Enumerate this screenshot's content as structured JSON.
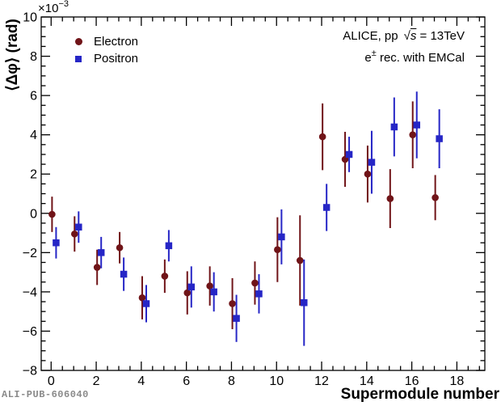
{
  "figure": {
    "id": "ALI-PUB-606040"
  },
  "labels": {
    "y_exp_base": "×10",
    "y_exp_sup": "−3"
  },
  "legend": {
    "items": [
      {
        "label": "Electron",
        "marker": "circle",
        "color": "#701418"
      },
      {
        "label": "Positron",
        "marker": "square",
        "color": "#2626c6"
      }
    ]
  },
  "annotation": {
    "line1_prefix": "ALICE, pp",
    "sqrt_symbol": "√",
    "sqrt_arg": "s",
    "line1_suffix": " = 13TeV",
    "line2_base": "e",
    "line2_sup": "±",
    "line2_rest": " rec. with EMCal"
  },
  "chart_data": {
    "type": "scatter",
    "title": "",
    "xlabel": "Supermodule number",
    "ylabel": "⟨Δφ⟩ (rad)",
    "y_scale_exponent": "×10⁻³",
    "xlim": [
      -0.44,
      19.24
    ],
    "ylim": [
      -8,
      10
    ],
    "xticks": [
      0,
      2,
      4,
      6,
      8,
      10,
      12,
      14,
      16,
      18
    ],
    "yticks": [
      -8,
      -6,
      -4,
      -2,
      0,
      2,
      4,
      6,
      8,
      10
    ],
    "minor_step_x": 0.5,
    "minor_step_y": 0.5,
    "grid": false,
    "legend_position": "top-left",
    "y_units": "10^-3 rad",
    "series": [
      {
        "name": "Electron",
        "marker": "circle",
        "color": "#701418",
        "x_offset": 0.04,
        "sm": [
          0,
          1,
          2,
          3,
          4,
          5,
          6,
          7,
          8,
          9,
          10,
          11,
          12,
          13,
          14,
          15,
          16,
          17
        ],
        "y": [
          -0.05,
          -1.05,
          -2.75,
          -1.75,
          -4.3,
          -3.2,
          -4.05,
          -3.7,
          -4.6,
          -3.55,
          -1.85,
          -2.4,
          3.9,
          2.75,
          2.0,
          0.75,
          4.0,
          0.8
        ],
        "yerr": [
          0.9,
          0.9,
          0.9,
          0.8,
          1.1,
          0.85,
          1.1,
          1.0,
          1.3,
          1.1,
          1.65,
          2.3,
          1.7,
          1.4,
          1.45,
          1.5,
          1.7,
          1.15
        ]
      },
      {
        "name": "Positron",
        "marker": "square",
        "color": "#2626c6",
        "x_offset": 0.22,
        "sm": [
          0,
          1,
          2,
          3,
          4,
          5,
          6,
          7,
          8,
          9,
          10,
          11,
          12,
          13,
          14,
          15,
          16,
          17
        ],
        "y": [
          -1.5,
          -0.7,
          -2.0,
          -3.1,
          -4.6,
          -1.65,
          -3.75,
          -4.0,
          -5.35,
          -4.1,
          -1.2,
          -4.55,
          0.3,
          3.0,
          2.6,
          4.4,
          4.5,
          3.8
        ],
        "yerr": [
          0.8,
          0.8,
          0.8,
          0.85,
          0.95,
          0.8,
          1.05,
          1.0,
          1.2,
          1.0,
          1.4,
          2.2,
          1.2,
          0.9,
          1.6,
          1.5,
          1.7,
          1.5
        ]
      }
    ]
  }
}
